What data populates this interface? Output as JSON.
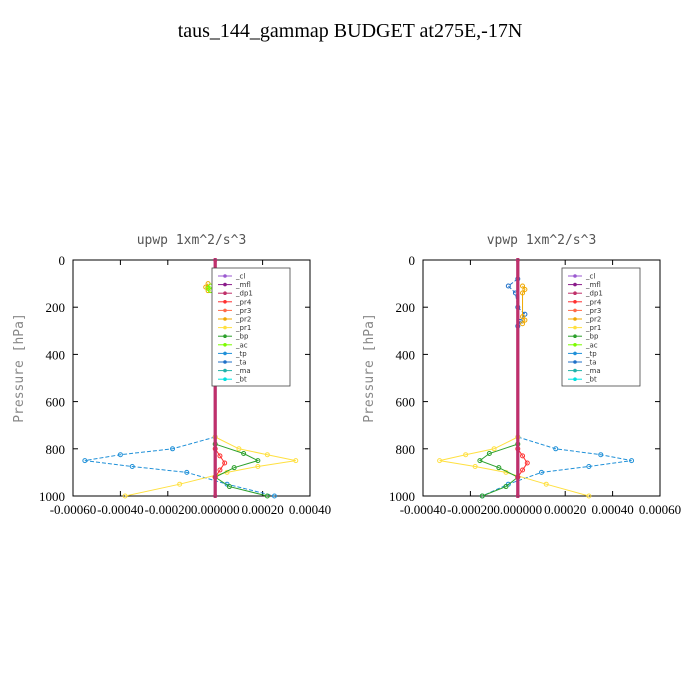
{
  "page": {
    "title": "taus_144_gammap  BUDGET at275E,-17N"
  },
  "legend_items": [
    {
      "name": "_cl",
      "color": "#9b59d0"
    },
    {
      "name": "_mfl",
      "color": "#8b1a8b"
    },
    {
      "name": "_dp1",
      "color": "#c0306a"
    },
    {
      "name": "_pr4",
      "color": "#ff3030"
    },
    {
      "name": "_pr3",
      "color": "#ff6a4a"
    },
    {
      "name": "_pr2",
      "color": "#f0a800"
    },
    {
      "name": "_pr1",
      "color": "#ffe040"
    },
    {
      "name": "_bp",
      "color": "#2ca02c"
    },
    {
      "name": "_ac",
      "color": "#7cfc00"
    },
    {
      "name": "_tp",
      "color": "#1f90d8"
    },
    {
      "name": "_ta",
      "color": "#1f70c8"
    },
    {
      "name": "_ma",
      "color": "#20b2aa"
    },
    {
      "name": "_bt",
      "color": "#00e0e0"
    }
  ],
  "chart_data": [
    {
      "type": "line",
      "title": "upwp   1xm^2/s^3",
      "xlabel": "",
      "ylabel": "Pressure [hPa]",
      "xlim": [
        -0.0006,
        0.0004
      ],
      "ylim": [
        1000,
        0
      ],
      "x_tick_labels": [
        "-0.00060",
        "-0.00040",
        "-0.00020",
        "0.000000",
        "0.00020",
        "0.00040"
      ],
      "x_tick_values": [
        -0.0006,
        -0.0004,
        -0.0002,
        0.0,
        0.0002,
        0.0004
      ],
      "y_tick_labels": [
        "0",
        "200",
        "400",
        "600",
        "800",
        "1000"
      ],
      "y_tick_values": [
        0,
        200,
        400,
        600,
        800,
        1000
      ],
      "legend_position": "top-right",
      "series": [
        {
          "name": "_tp",
          "pressure": [
            750,
            800,
            825,
            850,
            875,
            900,
            950,
            1000
          ],
          "values": [
            0.0,
            -0.00018,
            -0.0004,
            -0.00055,
            -0.00035,
            -0.00012,
            5e-05,
            0.00025
          ]
        },
        {
          "name": "_ta",
          "pressure": [
            50,
            80,
            100,
            120,
            140,
            160
          ],
          "values": [
            0.0,
            4e-05,
            8e-05,
            5e-05,
            1e-05,
            0.0
          ]
        },
        {
          "name": "_pr1",
          "pressure": [
            750,
            800,
            825,
            850,
            875,
            900,
            950,
            1000
          ],
          "values": [
            0.0,
            0.0001,
            0.00022,
            0.00034,
            0.00018,
            5e-05,
            -0.00015,
            -0.00038
          ]
        },
        {
          "name": "_bp",
          "pressure": [
            780,
            820,
            850,
            880,
            920,
            960,
            1000
          ],
          "values": [
            0.0,
            0.00012,
            0.00018,
            8e-05,
            0.0,
            6e-05,
            0.00022
          ]
        },
        {
          "name": "_pr4",
          "pressure": [
            800,
            830,
            860,
            890,
            920
          ],
          "values": [
            0.0,
            2e-05,
            4e-05,
            2e-05,
            0.0
          ]
        },
        {
          "name": "_pr2",
          "pressure": [
            100,
            115,
            130
          ],
          "values": [
            -3e-05,
            -4e-05,
            -3e-05
          ]
        },
        {
          "name": "_ac",
          "pressure": [
            110,
            120,
            130
          ],
          "values": [
            -2e-05,
            -3e-05,
            -2e-05
          ]
        },
        {
          "name": "_mfl",
          "pressure": [
            0,
            1000
          ],
          "values": [
            0.0,
            0.0
          ]
        },
        {
          "name": "_dp1",
          "pressure": [
            0,
            1000
          ],
          "values": [
            0.0,
            0.0
          ]
        }
      ]
    },
    {
      "type": "line",
      "title": "vpwp   1xm^2/s^3",
      "xlabel": "",
      "ylabel": "Pressure [hPa]",
      "xlim": [
        -0.0004,
        0.0006
      ],
      "ylim": [
        1000,
        0
      ],
      "x_tick_labels": [
        "-0.00040",
        "-0.00020",
        "0.000000",
        "0.00020",
        "0.00040",
        "0.00060"
      ],
      "x_tick_values": [
        -0.0004,
        -0.0002,
        0.0,
        0.0002,
        0.0004,
        0.0006
      ],
      "y_tick_labels": [
        "0",
        "200",
        "400",
        "600",
        "800",
        "1000"
      ],
      "y_tick_values": [
        0,
        200,
        400,
        600,
        800,
        1000
      ],
      "legend_position": "top-right",
      "series": [
        {
          "name": "_tp",
          "pressure": [
            750,
            800,
            825,
            850,
            875,
            900,
            950,
            1000
          ],
          "values": [
            0.0,
            0.00016,
            0.00035,
            0.00048,
            0.0003,
            0.0001,
            -4e-05,
            -0.00015
          ]
        },
        {
          "name": "_ta",
          "pressure": [
            80,
            110,
            140,
            200,
            230,
            260,
            280
          ],
          "values": [
            0.0,
            -4e-05,
            -1e-05,
            0.0,
            3e-05,
            1e-05,
            0.0
          ]
        },
        {
          "name": "_pr1",
          "pressure": [
            750,
            800,
            825,
            850,
            875,
            900,
            950,
            1000
          ],
          "values": [
            0.0,
            -0.0001,
            -0.00022,
            -0.00033,
            -0.00018,
            -5e-05,
            0.00012,
            0.0003
          ]
        },
        {
          "name": "_bp",
          "pressure": [
            780,
            820,
            850,
            880,
            920,
            960,
            1000
          ],
          "values": [
            0.0,
            -0.00012,
            -0.00016,
            -8e-05,
            0.0,
            -5e-05,
            -0.00015
          ]
        },
        {
          "name": "_pr4",
          "pressure": [
            800,
            830,
            860,
            890,
            920
          ],
          "values": [
            0.0,
            2e-05,
            4e-05,
            2e-05,
            0.0
          ]
        },
        {
          "name": "_pr2",
          "pressure": [
            110,
            125,
            140,
            240,
            255,
            270
          ],
          "values": [
            2e-05,
            3e-05,
            2e-05,
            2e-05,
            3e-05,
            2e-05
          ]
        },
        {
          "name": "_mfl",
          "pressure": [
            0,
            1000
          ],
          "values": [
            0.0,
            0.0
          ]
        },
        {
          "name": "_dp1",
          "pressure": [
            0,
            1000
          ],
          "values": [
            0.0,
            0.0
          ]
        }
      ]
    }
  ]
}
